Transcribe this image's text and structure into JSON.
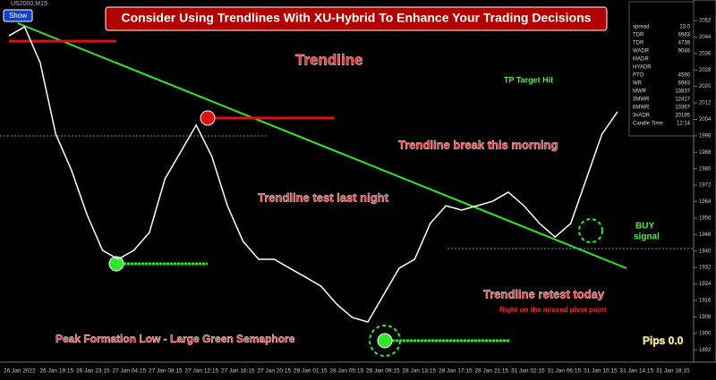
{
  "chart_data": {
    "type": "line",
    "title": "Consider Using Trendlines With XU-Hybrid To Enhance Your Trading Decisions",
    "symbol": "US2000,M15",
    "button": "Show",
    "color": "#ffffff",
    "values": [
      2044.6,
      2049.0,
      2031.6,
      1996.8,
      1979.4,
      1957.7,
      1940.3,
      1936.0,
      1940.3,
      1949.0,
      1975.1,
      1988.1,
      2001.2,
      1986.0,
      1962.0,
      1944.7,
      1936.0,
      1936.0,
      1931.6,
      1927.3,
      1922.9,
      1914.2,
      1907.7,
      1905.5,
      1918.6,
      1931.6,
      1936.0,
      1953.4,
      1962.0,
      1959.9,
      1962.0,
      1964.2,
      1968.6,
      1962.0,
      1953.4,
      1946.8,
      1953.4,
      1975.1,
      1996.8,
      2007.7
    ],
    "x_labels": [
      "26 Jan 2022",
      "26 Jan 19:15",
      "26 Jan 23:15",
      "27 Jan 04:15",
      "27 Jan 08:15",
      "27 Jan 12:15",
      "27 Jan 16:15",
      "27 Jan 20:15",
      "28 Jan 01:15",
      "28 Jan 05:15",
      "28 Jan 09:15",
      "28 Jan 13:15",
      "28 Jan 17:15",
      "28 Jan 21:15",
      "31 Jan 02:15",
      "31 Jan 06:15",
      "31 Jan 10:15",
      "31 Jan 14:15",
      "31 Jan 18:15"
    ],
    "ylim": [
      1886,
      2062
    ],
    "yticks": [
      1892,
      1900,
      1908,
      1916,
      1924,
      1932,
      1940,
      1948,
      1956,
      1964,
      1972,
      1980,
      1988,
      1996,
      2004,
      2012,
      2020,
      2028,
      2036,
      2044,
      2052
    ],
    "annotations": [
      "Trendline",
      "TP Target Hit",
      "Trendline break this morning",
      "Trendline test last night",
      "BUY",
      "signal",
      "Trendline retest today",
      "Right on the missed pivot point",
      "Peak Formation Low - Large Green Semaphore",
      "Pips 0.0"
    ],
    "info_panel": [
      [
        "spread",
        "23.0"
      ],
      [
        "TDR",
        "6983"
      ],
      [
        "TDR",
        "4739"
      ],
      [
        "WADR",
        "9046"
      ],
      [
        "MADR",
        ""
      ],
      [
        "HYADR",
        ""
      ],
      [
        "PTO",
        "4590"
      ],
      [
        "WR",
        "6983"
      ],
      [
        "MWR",
        "13837"
      ],
      [
        "3MWR",
        "12417"
      ],
      [
        "6MWR",
        "10367"
      ],
      [
        "3xADR",
        "20195"
      ],
      [
        "Candle Time",
        "12:14"
      ]
    ]
  }
}
